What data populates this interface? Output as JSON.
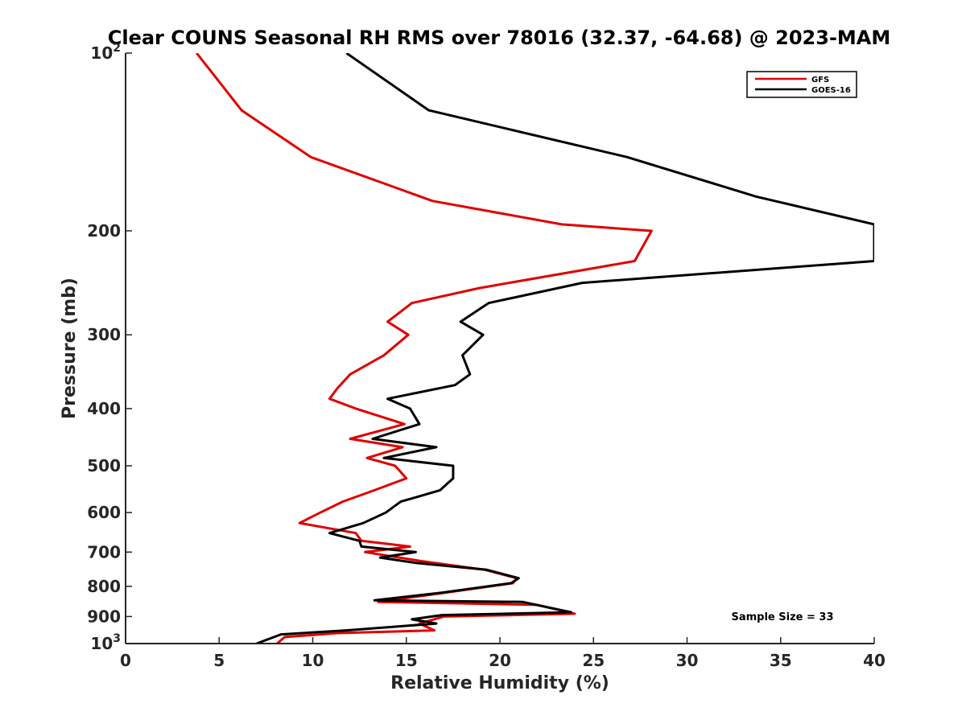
{
  "chart_data": {
    "type": "line",
    "title": "Clear COUNS Seasonal RH RMS over 78016 (32.37, -64.68) @ 2023-MAM",
    "xlabel": "Relative Humidity (%)",
    "ylabel": "Pressure (mb)",
    "xlim": [
      0,
      40
    ],
    "ylim": [
      100,
      1000
    ],
    "yscale": "log-reversed",
    "xticks": [
      0,
      5,
      10,
      15,
      20,
      25,
      30,
      35,
      40
    ],
    "xtick_labels": [
      "0",
      "5",
      "10",
      "15",
      "20",
      "25",
      "30",
      "35",
      "40"
    ],
    "yticks": [
      100,
      200,
      300,
      400,
      500,
      600,
      700,
      800,
      900,
      1000
    ],
    "ytick_labels": [
      {
        "base": "10",
        "exp": "2"
      },
      {
        "text": "200"
      },
      {
        "text": "300"
      },
      {
        "text": "400"
      },
      {
        "text": "500"
      },
      {
        "text": "600"
      },
      {
        "text": "700"
      },
      {
        "text": "800"
      },
      {
        "text": "900"
      },
      {
        "base": "10",
        "exp": "3"
      }
    ],
    "legend_position": "top-right",
    "annotation": "Sample Size = 33",
    "series": [
      {
        "name": "GFS",
        "color": "#e00000",
        "points": [
          [
            3.8,
            100
          ],
          [
            6.2,
            125
          ],
          [
            9.9,
            150
          ],
          [
            16.4,
            178
          ],
          [
            23.3,
            195
          ],
          [
            28.1,
            200
          ],
          [
            27.2,
            225
          ],
          [
            18.9,
            250
          ],
          [
            15.3,
            265
          ],
          [
            14.0,
            285
          ],
          [
            15.1,
            300
          ],
          [
            13.8,
            325
          ],
          [
            12.0,
            350
          ],
          [
            11.3,
            370
          ],
          [
            10.9,
            385
          ],
          [
            12.3,
            400
          ],
          [
            14.9,
            425
          ],
          [
            12.0,
            450
          ],
          [
            14.8,
            465
          ],
          [
            12.9,
            485
          ],
          [
            14.4,
            500
          ],
          [
            15.0,
            525
          ],
          [
            13.3,
            550
          ],
          [
            11.6,
            575
          ],
          [
            10.4,
            600
          ],
          [
            9.3,
            625
          ],
          [
            12.3,
            650
          ],
          [
            12.6,
            670
          ],
          [
            15.2,
            685
          ],
          [
            12.8,
            700
          ],
          [
            15.8,
            725
          ],
          [
            19.2,
            750
          ],
          [
            20.9,
            775
          ],
          [
            20.7,
            790
          ],
          [
            16.5,
            825
          ],
          [
            13.5,
            850
          ],
          [
            22.0,
            860
          ],
          [
            24.0,
            890
          ],
          [
            17.0,
            900
          ],
          [
            15.7,
            925
          ],
          [
            16.5,
            950
          ],
          [
            11.3,
            960
          ],
          [
            8.5,
            975
          ],
          [
            8.1,
            1000
          ]
        ]
      },
      {
        "name": "GOES-16",
        "color": "#000000",
        "points": [
          [
            11.8,
            100
          ],
          [
            16.2,
            125
          ],
          [
            26.8,
            150
          ],
          [
            33.7,
            175
          ],
          [
            40.0,
            195
          ],
          [
            40.0,
            225
          ],
          [
            24.4,
            245
          ],
          [
            19.4,
            265
          ],
          [
            17.9,
            285
          ],
          [
            19.1,
            300
          ],
          [
            18.0,
            325
          ],
          [
            18.4,
            350
          ],
          [
            17.6,
            365
          ],
          [
            14.0,
            385
          ],
          [
            15.2,
            400
          ],
          [
            15.7,
            425
          ],
          [
            13.2,
            450
          ],
          [
            16.6,
            465
          ],
          [
            13.8,
            485
          ],
          [
            17.5,
            500
          ],
          [
            17.5,
            525
          ],
          [
            16.8,
            550
          ],
          [
            14.7,
            575
          ],
          [
            13.9,
            600
          ],
          [
            12.7,
            625
          ],
          [
            10.9,
            650
          ],
          [
            12.5,
            670
          ],
          [
            12.6,
            685
          ],
          [
            15.5,
            700
          ],
          [
            13.6,
            715
          ],
          [
            15.5,
            730
          ],
          [
            19.3,
            750
          ],
          [
            21.0,
            775
          ],
          [
            20.6,
            790
          ],
          [
            16.9,
            820
          ],
          [
            13.3,
            845
          ],
          [
            21.2,
            850
          ],
          [
            23.8,
            885
          ],
          [
            16.9,
            895
          ],
          [
            15.3,
            910
          ],
          [
            16.6,
            925
          ],
          [
            11.8,
            950
          ],
          [
            8.3,
            965
          ],
          [
            7.0,
            1000
          ]
        ]
      }
    ]
  }
}
